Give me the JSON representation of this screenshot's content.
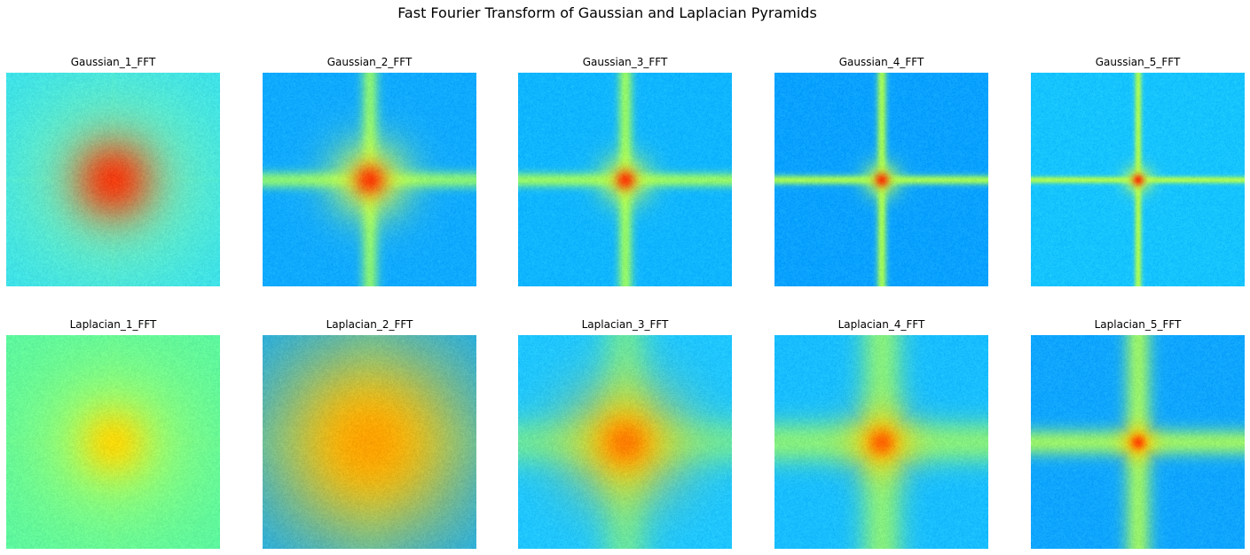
{
  "figure": {
    "title": "Fast Fourier Transform of Gaussian and Laplacian Pyramids"
  },
  "rows": [
    {
      "panels": [
        {
          "title": "Gaussian_1_FFT",
          "bg": "#38e0ee",
          "glow": "#7cf6b0",
          "core": "#ff2a00",
          "line": "#4ff2c8",
          "glowSize": 0.55,
          "lineAlpha": 0.18,
          "lineWidth": 4
        },
        {
          "title": "Gaussian_2_FFT",
          "bg": "#10aaff",
          "glow": "#d8ff3a",
          "core": "#ff2a00",
          "line": "#9cff62",
          "glowSize": 0.22,
          "lineAlpha": 0.85,
          "lineWidth": 14
        },
        {
          "title": "Gaussian_3_FFT",
          "bg": "#10b6ff",
          "glow": "#c8ff40",
          "core": "#ff2a00",
          "line": "#a2ff5a",
          "glowSize": 0.14,
          "lineAlpha": 0.9,
          "lineWidth": 12
        },
        {
          "title": "Gaussian_4_FFT",
          "bg": "#0aa2ff",
          "glow": "#b8ff48",
          "core": "#ff2a00",
          "line": "#a8ff52",
          "glowSize": 0.1,
          "lineAlpha": 0.95,
          "lineWidth": 8
        },
        {
          "title": "Gaussian_5_FFT",
          "bg": "#16c4ff",
          "glow": "#c0ff48",
          "core": "#ff2a00",
          "line": "#b0ff50",
          "glowSize": 0.08,
          "lineAlpha": 0.95,
          "lineWidth": 6
        }
      ]
    },
    {
      "panels": [
        {
          "title": "Laplacian_1_FFT",
          "bg": "#5cf7a0",
          "glow": "#a8ff64",
          "core": "#ffd600",
          "line": "#7afa8a",
          "glowSize": 0.45,
          "lineAlpha": 0.12,
          "lineWidth": 10
        },
        {
          "title": "Laplacian_2_FFT",
          "bg": "#0aaaff",
          "glow": "#ffcc00",
          "core": "#ff9e00",
          "line": "#60f6b0",
          "glowSize": 0.62,
          "lineAlpha": 0.15,
          "lineWidth": 40
        },
        {
          "title": "Laplacian_3_FFT",
          "bg": "#1ec6ff",
          "glow": "#ffd000",
          "core": "#ff7400",
          "line": "#9aff60",
          "glowSize": 0.32,
          "lineAlpha": 0.55,
          "lineWidth": 40
        },
        {
          "title": "Laplacian_4_FFT",
          "bg": "#18beff",
          "glow": "#ffd000",
          "core": "#ff5800",
          "line": "#a8ff56",
          "glowSize": 0.18,
          "lineAlpha": 0.75,
          "lineWidth": 36
        },
        {
          "title": "Laplacian_5_FFT",
          "bg": "#0fa6ff",
          "glow": "#ffd000",
          "core": "#ff3a00",
          "line": "#b0ff52",
          "glowSize": 0.1,
          "lineAlpha": 0.85,
          "lineWidth": 22
        }
      ]
    }
  ]
}
